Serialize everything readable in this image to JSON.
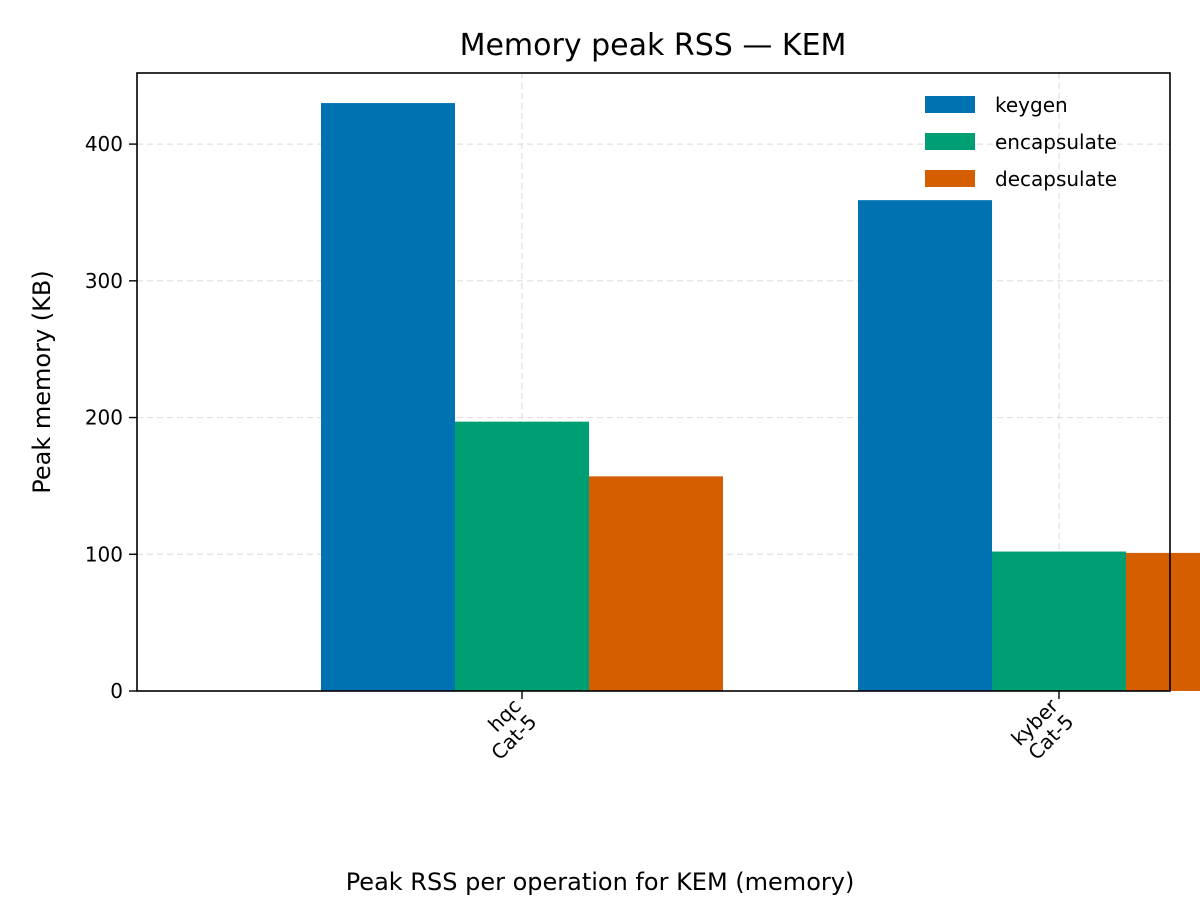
{
  "chart_data": {
    "type": "bar",
    "title": "Memory peak RSS — KEM",
    "xlabel": "",
    "ylabel": "Peak memory (KB)",
    "caption": "Peak RSS per operation for KEM (memory)",
    "categories": [
      [
        "hqc",
        "Cat-5"
      ],
      [
        "kyber",
        "Cat-5"
      ]
    ],
    "series": [
      {
        "name": "keygen",
        "color": "#0072b2",
        "values": [
          430,
          359
        ]
      },
      {
        "name": "encapsulate",
        "color": "#009e73",
        "values": [
          197,
          102
        ]
      },
      {
        "name": "decapsulate",
        "color": "#d55e00",
        "values": [
          157,
          101
        ]
      }
    ],
    "ylim": [
      0,
      452
    ],
    "yticks": [
      0,
      100,
      200,
      300,
      400
    ],
    "grid": true,
    "legend_position": "top-right"
  }
}
